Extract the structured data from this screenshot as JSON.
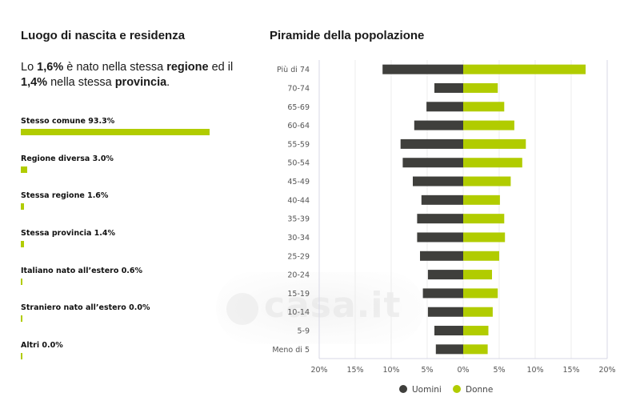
{
  "left_panel": {
    "title": "Luogo di nascita e residenza",
    "summary": {
      "part1": "Lo ",
      "value1": "1,6%",
      "part2": " è nato nella stessa ",
      "keyword1": "regione",
      "part3": " ed il ",
      "value2": "1,4%",
      "part4": " nella stessa ",
      "keyword2": "provincia",
      "part5": "."
    },
    "items": [
      {
        "label": "Stesso comune 93.3%",
        "value": 93.3
      },
      {
        "label": "Regione diversa 3.0%",
        "value": 3.0
      },
      {
        "label": "Stessa regione 1.6%",
        "value": 1.6
      },
      {
        "label": "Stessa provincia 1.4%",
        "value": 1.4
      },
      {
        "label": "Italiano nato all’estero 0.6%",
        "value": 0.6
      },
      {
        "label": "Straniero nato all’estero 0.0%",
        "value": 0.0
      },
      {
        "label": "Altri 0.0%",
        "value": 0.0
      }
    ],
    "bar_color": "#b1cc00"
  },
  "watermark": {
    "text": "casa.it"
  },
  "chart_data": {
    "type": "bar",
    "orientation": "horizontal-pyramid",
    "title": "Piramide della popolazione",
    "categories": [
      "Più di 74",
      "70-74",
      "65-69",
      "60-64",
      "55-59",
      "50-54",
      "45-49",
      "40-44",
      "35-39",
      "30-34",
      "25-29",
      "20-24",
      "15-19",
      "10-14",
      "5-9",
      "Meno di 5"
    ],
    "series": [
      {
        "name": "Uomini",
        "color": "#3f3f3c",
        "side": "left",
        "values": [
          11.2,
          4.0,
          5.1,
          6.8,
          8.7,
          8.4,
          7.0,
          5.8,
          6.4,
          6.4,
          6.0,
          4.9,
          5.6,
          4.9,
          4.0,
          3.8
        ]
      },
      {
        "name": "Donne",
        "color": "#b1cc00",
        "side": "right",
        "values": [
          17.0,
          4.8,
          5.7,
          7.1,
          8.7,
          8.2,
          6.6,
          5.1,
          5.7,
          5.8,
          5.0,
          4.0,
          4.8,
          4.1,
          3.5,
          3.4
        ]
      }
    ],
    "x_ticks": [
      "20%",
      "15%",
      "10%",
      "5%",
      "0%",
      "5%",
      "10%",
      "15%",
      "20%"
    ],
    "x_tick_values": [
      -20,
      -15,
      -10,
      -5,
      0,
      5,
      10,
      15,
      20
    ],
    "xlim": [
      -20,
      20
    ],
    "xlabel": "",
    "ylabel": "",
    "grid": true,
    "legend_position": "bottom"
  }
}
